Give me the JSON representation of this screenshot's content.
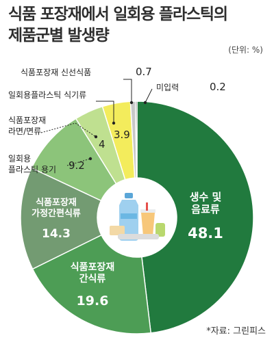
{
  "title_lines": [
    "식품 포장재에서 일회용 플라스틱의",
    "제품군별 발생량"
  ],
  "unit": "(단위: %)",
  "source": "*자료: 그린피스",
  "colors": {
    "dark_green": "#217a3e",
    "mid_green": "#4d9d55",
    "gray_green": "#739b72",
    "light_green": "#8cc47a",
    "pale_green": "#bfe090",
    "yellow": "#f3ec5c",
    "light_gray": "#c8c8c8",
    "dark_gray": "#555555"
  },
  "chart_data": {
    "type": "pie",
    "donut": true,
    "unit": "%",
    "slices": [
      {
        "name_lines": [
          "생수 및",
          "음료류"
        ],
        "value": 48.1,
        "color": "#217a3e",
        "label_pos": "inside"
      },
      {
        "name_lines": [
          "식품포장재",
          "간식류"
        ],
        "value": 19.6,
        "color": "#4d9d55",
        "label_pos": "inside"
      },
      {
        "name_lines": [
          "식품포장재",
          "가정간편식류"
        ],
        "value": 14.3,
        "color": "#739b72",
        "label_pos": "inside"
      },
      {
        "name_lines": [
          "일회용",
          "플라스틱 용기"
        ],
        "value": 9.2,
        "color": "#8cc47a",
        "label_pos": "outside"
      },
      {
        "name_lines": [
          "식품포장재",
          "라면/면류"
        ],
        "value": 4.0,
        "color": "#bfe090",
        "label_pos": "outside"
      },
      {
        "name_lines": [
          "일회용플라스틱 식기류"
        ],
        "value": 3.9,
        "color": "#f3ec5c",
        "label_pos": "outside"
      },
      {
        "name_lines": [
          "식품포장재 신선식품"
        ],
        "value": 0.7,
        "color": "#c8c8c8",
        "label_pos": "outside"
      },
      {
        "name_lines": [
          "미입력"
        ],
        "value": 0.2,
        "color": "#555555",
        "label_pos": "outside"
      }
    ]
  }
}
